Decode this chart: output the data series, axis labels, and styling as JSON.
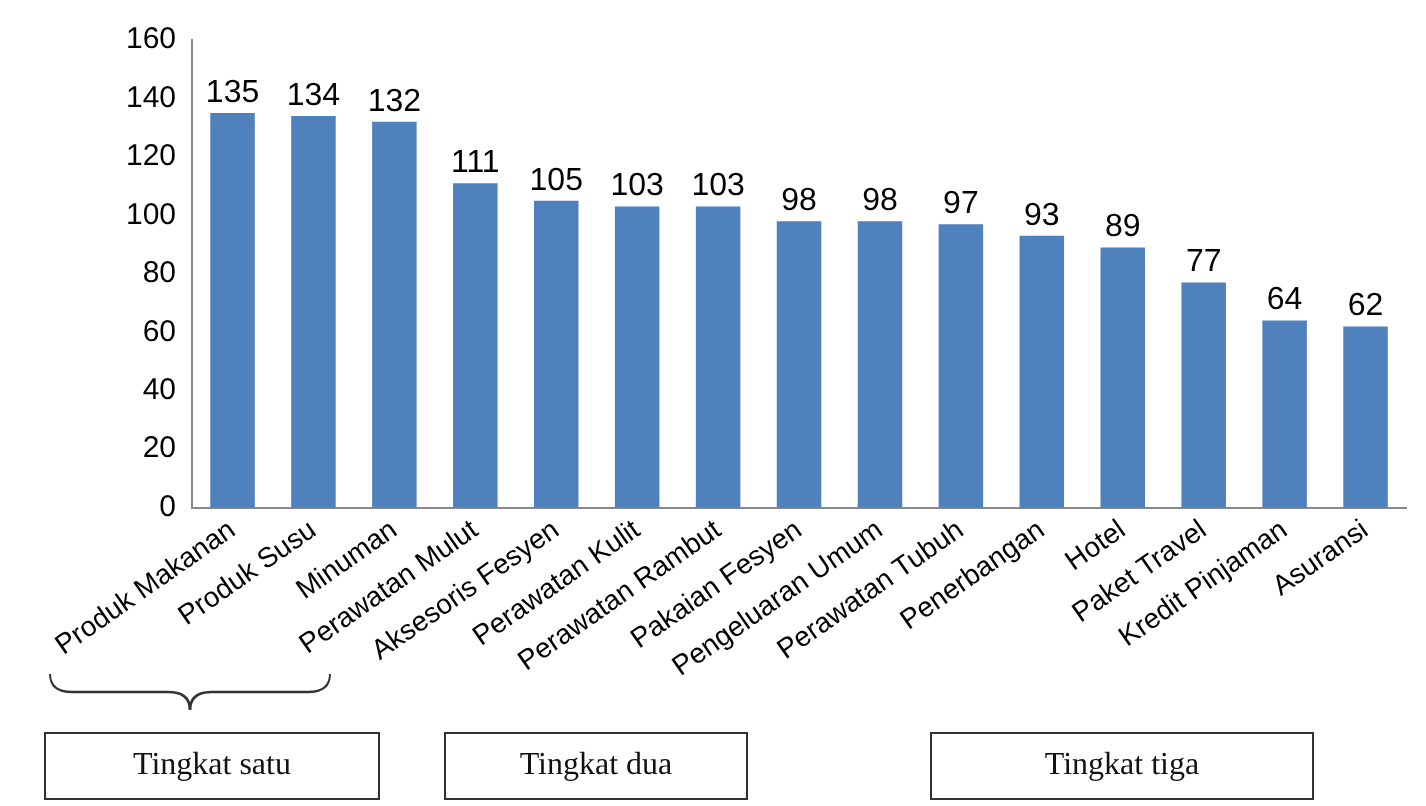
{
  "chart_data": {
    "type": "bar",
    "categories": [
      "Produk Makanan",
      "Produk Susu",
      "Minuman",
      "Perawatan Mulut",
      "Aksesoris Fesyen",
      "Perawatan Kulit",
      "Perawatan Rambut",
      "Pakaian Fesyen",
      "Pengeluaran Umum",
      "Perawatan Tubuh",
      "Penerbangan",
      "Hotel",
      "Paket Travel",
      "Kredit Pinjaman",
      "Asuransi"
    ],
    "values": [
      135,
      134,
      132,
      111,
      105,
      103,
      103,
      98,
      98,
      97,
      93,
      89,
      77,
      64,
      62
    ],
    "color": "#4f81bd",
    "ylim": [
      0,
      160
    ],
    "yticks": [
      0,
      20,
      40,
      60,
      80,
      100,
      120,
      140,
      160
    ],
    "grid": false,
    "legend": false,
    "data_labels": true,
    "annotations": [
      "Tingkat satu",
      "Tingkat dua",
      "Tingkat tiga"
    ]
  }
}
